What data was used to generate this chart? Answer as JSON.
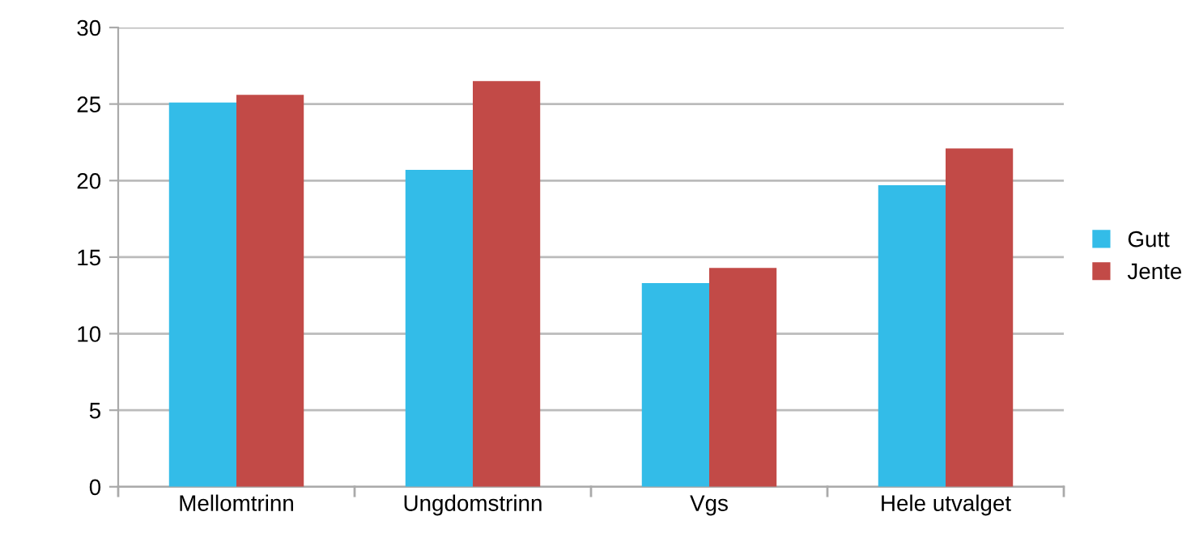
{
  "chart_data": {
    "type": "bar",
    "categories": [
      "Mellomtrinn",
      "Ungdomstrinn",
      "Vgs",
      "Hele utvalget"
    ],
    "series": [
      {
        "name": "Gutt",
        "color": "#33bce8",
        "values": [
          25.1,
          20.7,
          13.3,
          19.7
        ]
      },
      {
        "name": "Jente",
        "color": "#c24a47",
        "values": [
          25.6,
          26.5,
          14.3,
          22.1
        ]
      }
    ],
    "ylim": [
      0,
      30
    ],
    "yticks": [
      0,
      5,
      10,
      15,
      20,
      25,
      30
    ],
    "grid": "y",
    "legend": "right"
  }
}
